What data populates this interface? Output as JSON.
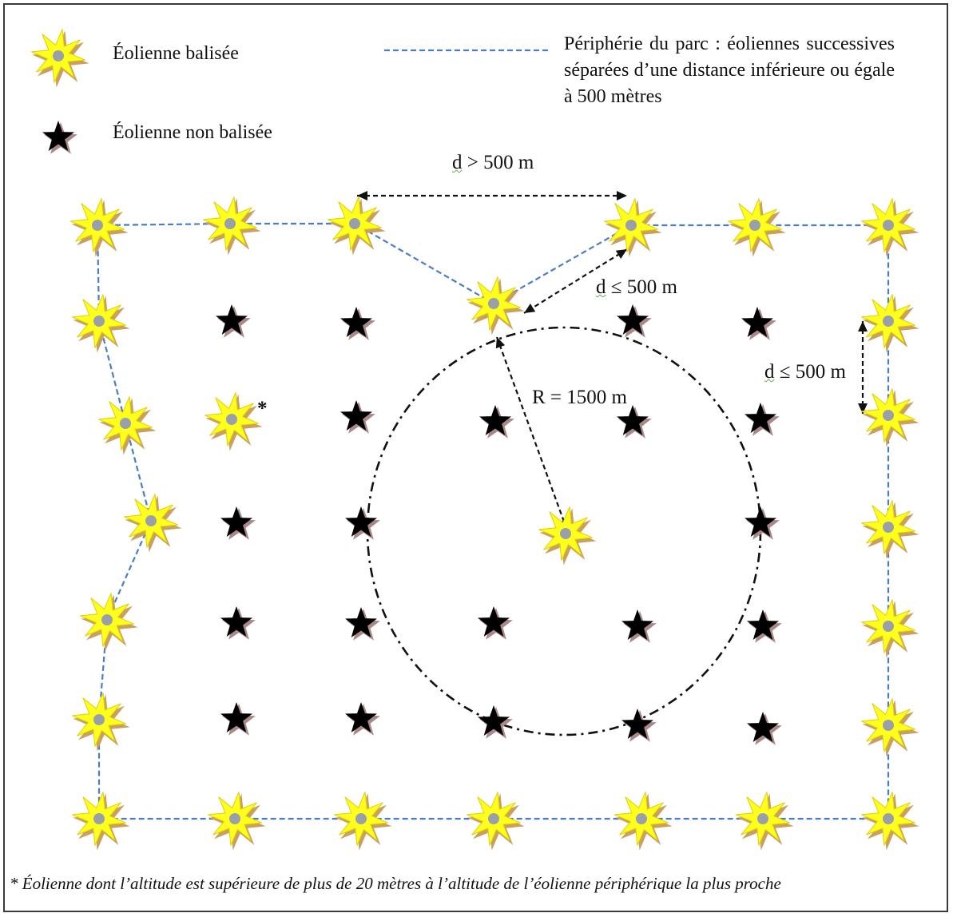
{
  "legend": {
    "lit_turbine": "Éolienne balisée",
    "unlit_turbine": "Éolienne non balisée",
    "perimeter": "Périphérie du parc : éoliennes successives séparées d’une distance inférieure ou égale à 500 mètres"
  },
  "labels": {
    "d_gt_prefix": "d",
    "d_gt_rest": " > 500 m",
    "d_le_prefix": "d",
    "d_le_rest": " ≤ 500 m",
    "radius": "R = 1500 m",
    "asterisk": "*"
  },
  "footnote": "* Éolienne dont l’altitude est supérieure de plus de 20 mètres à l’altitude de l’éolienne périphérique la plus proche",
  "colors": {
    "lit_fill": "#ffff1e",
    "lit_shadow": "#c9a060",
    "lit_hub": "#9aa0aa",
    "perimeter_line": "#4a7ec4",
    "unlit": "#000000"
  }
}
